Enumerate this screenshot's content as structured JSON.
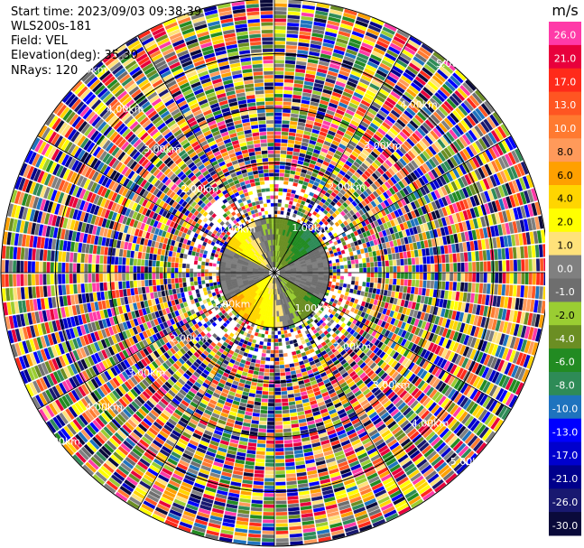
{
  "header": {
    "start_time": "Start time: 2023/09/03 09:38:39",
    "instrument": "WLS200s-181",
    "field": "Field: VEL",
    "elevation": "Elevation(deg): 35.30",
    "nrays": "NRays: 120"
  },
  "chart_data": {
    "type": "heatmap",
    "projection": "polar-ppi",
    "field": "VEL",
    "units": "m/s",
    "n_rays": 120,
    "elevation_deg": 35.3,
    "range_rings_km": [
      1,
      2,
      3,
      4,
      5
    ],
    "range_labels": [
      "1.00km",
      "2.00km",
      "3.00km",
      "4.00km",
      "5.00km"
    ],
    "colorbar": {
      "unit_label": "m/s",
      "levels": [
        26.0,
        21.0,
        17.0,
        13.0,
        10.0,
        8.0,
        6.0,
        4.0,
        2.0,
        1.0,
        0.0,
        -1.0,
        -2.0,
        -4.0,
        -6.0,
        -8.0,
        -10.0,
        -13.0,
        -17.0,
        -21.0,
        -26.0,
        -30.0
      ],
      "tick_labels": [
        "26.0",
        "21.0",
        "17.0",
        "13.0",
        "10.0",
        "8.0",
        "6.0",
        "4.0",
        "2.0",
        "1.0",
        "0.0",
        "-1.0",
        "-2.0",
        "-4.0",
        "-6.0",
        "-8.0",
        "-10.0",
        "-13.0",
        "-17.0",
        "-21.0",
        "-26.0",
        "-30.0"
      ],
      "colors": [
        "#ff3aa8",
        "#e8003c",
        "#ff2a1a",
        "#ff5522",
        "#ff7a30",
        "#ff9a5a",
        "#ffa000",
        "#ffd500",
        "#ffff00",
        "#ffe27a",
        "#808080",
        "#6e6e6e",
        "#9acd32",
        "#6b8e23",
        "#228b22",
        "#2e8b57",
        "#1e73be",
        "#0000ff",
        "#0000cd",
        "#00008b",
        "#191970",
        "#0a0a3a"
      ]
    }
  }
}
